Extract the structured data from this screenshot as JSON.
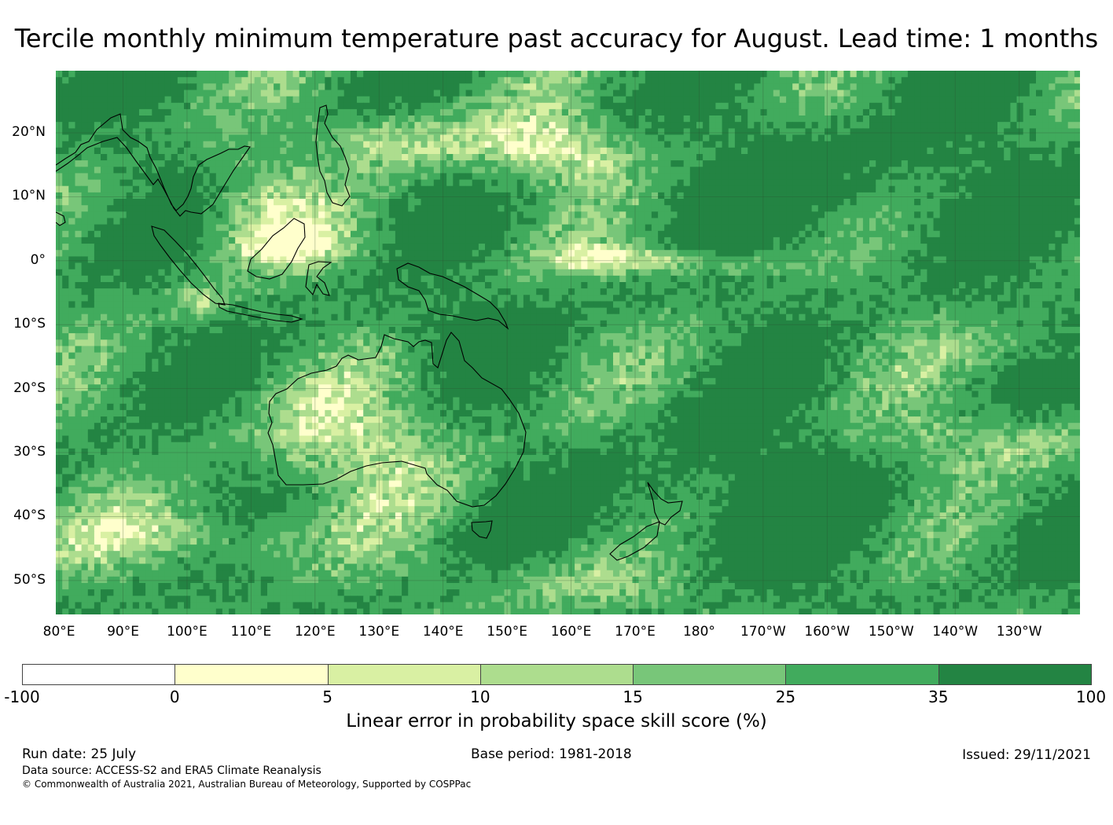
{
  "title": "Tercile monthly minimum temperature past accuracy for August. Lead time: 1 months",
  "map": {
    "lat_labels": [
      "20°N",
      "10°N",
      "0°",
      "10°S",
      "20°S",
      "30°S",
      "40°S",
      "50°S"
    ],
    "lon_labels": [
      "80°E",
      "90°E",
      "100°E",
      "110°E",
      "120°E",
      "130°E",
      "140°E",
      "150°E",
      "160°E",
      "170°E",
      "180°",
      "170°W",
      "160°W",
      "150°W",
      "140°W",
      "130°W"
    ],
    "extent": {
      "lon_min": 79.5,
      "lon_max": 239.5,
      "lat_min": -55.3,
      "lat_max": 29.7
    }
  },
  "colorbar": {
    "ticks": [
      "-100",
      "0",
      "5",
      "10",
      "15",
      "25",
      "35",
      "100"
    ],
    "colors": [
      "#ffffff",
      "#ffffcc",
      "#d9f0a3",
      "#addd8e",
      "#78c679",
      "#41ab5d",
      "#238443"
    ],
    "label": "Linear error in probability space skill score (%)"
  },
  "footer": {
    "run_date": "Run date: 25 July",
    "base_period": "Base period: 1981-2018",
    "issued": "Issued: 29/11/2021",
    "data_source": "Data source: ACCESS-S2 and ERA5 Climate Reanalysis",
    "copyright": "© Commonwealth of Australia 2021, Australian Bureau of Meteorology, Supported by COSPPac"
  }
}
